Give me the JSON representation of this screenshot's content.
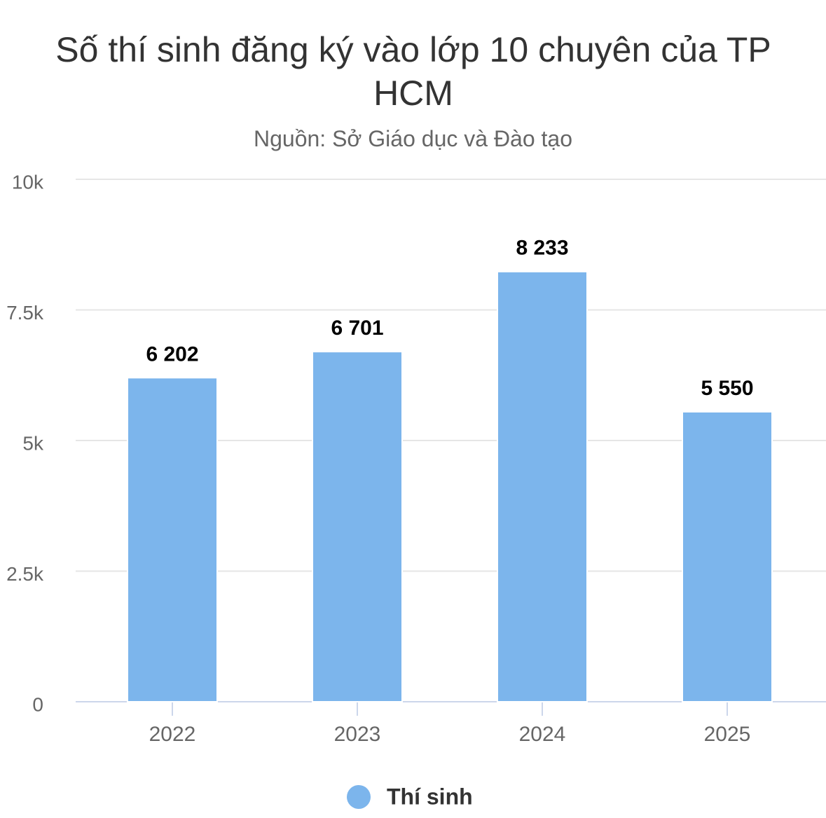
{
  "chart_data": {
    "type": "bar",
    "title": "Số thí sinh đăng ký vào lớp 10 chuyên của TP HCM",
    "subtitle": "Nguồn: Sở Giáo dục và Đào tạo",
    "categories": [
      "2022",
      "2023",
      "2024",
      "2025"
    ],
    "series": [
      {
        "name": "Thí sinh",
        "color": "#7cb5ec",
        "values": [
          6202,
          6701,
          8233,
          5550
        ],
        "value_labels": [
          "6 202",
          "6 701",
          "8 233",
          "5 550"
        ]
      }
    ],
    "ylim": [
      0,
      10000
    ],
    "yticks": [
      0,
      {
        "value": 2500,
        "label": "2.5k"
      },
      {
        "value": 5000,
        "label": "5k"
      },
      {
        "value": 7500,
        "label": "7.5k"
      },
      {
        "value": 10000,
        "label": "10k"
      }
    ],
    "grid": true,
    "legend": "bottom"
  }
}
